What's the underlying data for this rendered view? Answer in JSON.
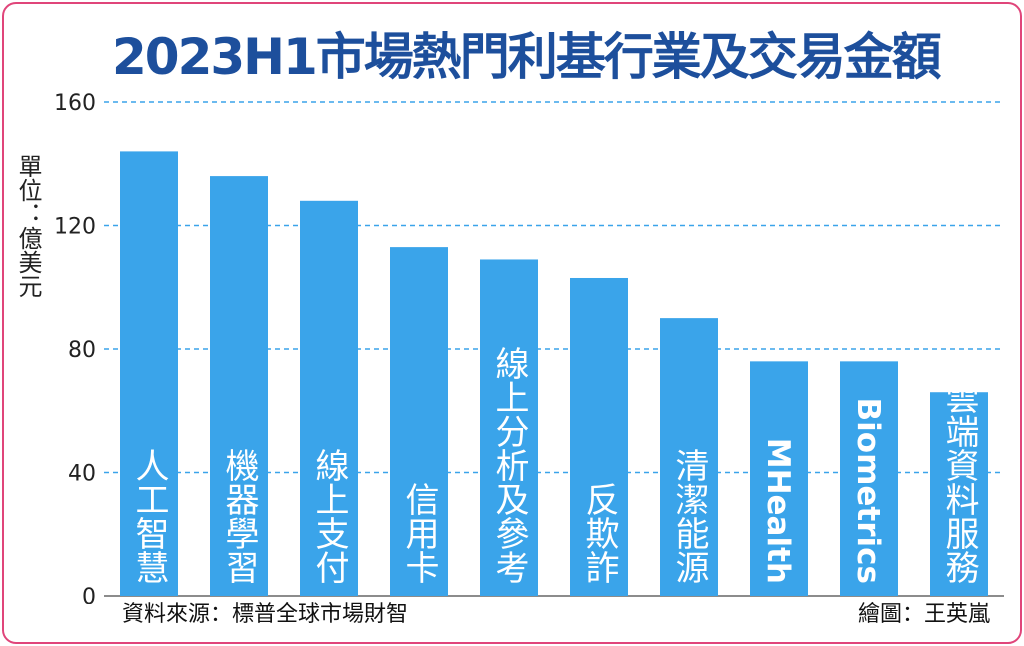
{
  "chart_data": {
    "type": "bar",
    "title": "2023H1市場熱門利基行業及交易金額",
    "ylabel": "單位：億美元",
    "xlabel": "",
    "ylim": [
      0,
      160
    ],
    "yticks": [
      0,
      40,
      80,
      120,
      160
    ],
    "grid": true,
    "categories": [
      "人工智慧",
      "機器學習",
      "線上支付",
      "信用卡",
      "線上分析及參考",
      "反欺詐",
      "清潔能源",
      "MHealth",
      "Biometrics",
      "雲端資料服務"
    ],
    "values": [
      144,
      136,
      128,
      113,
      109,
      103,
      90,
      76,
      76,
      66
    ],
    "bar_color": "#3aa4ea",
    "label_color": "#ffffff"
  },
  "source": "資料來源：標普全球市場財智",
  "credit": "繪圖：王英嵐"
}
